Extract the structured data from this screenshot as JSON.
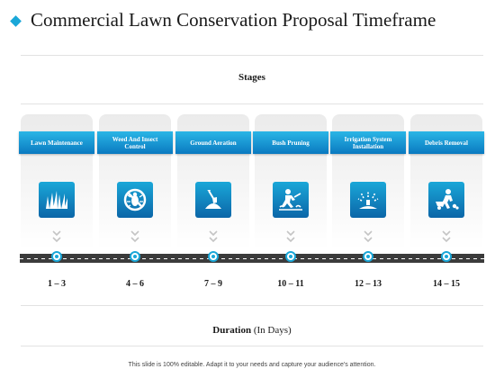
{
  "title": "Commercial Lawn Conservation Proposal Timeframe",
  "stages_label": "Stages",
  "stages": [
    {
      "label": "Lawn Maintenance",
      "icon": "grass-icon",
      "duration": "1 – 3"
    },
    {
      "label": "Weed And Insect Control",
      "icon": "no-bug-icon",
      "duration": "4 – 6"
    },
    {
      "label": "Ground Aeration",
      "icon": "shovel-soil-icon",
      "duration": "7 – 9"
    },
    {
      "label": "Bush Pruning",
      "icon": "gardener-icon",
      "duration": "10 – 11"
    },
    {
      "label": "Irrigation System Installation",
      "icon": "sprinkler-icon",
      "duration": "12 – 13"
    },
    {
      "label": "Debris Removal",
      "icon": "wheelbarrow-icon",
      "duration": "14 – 15"
    }
  ],
  "duration_label": {
    "bold": "Duration",
    "normal": "(In Days)"
  },
  "footer": "This slide is 100% editable. Adapt it to your needs and capture your audience's attention.",
  "colors": {
    "accent": "#1aa7d8",
    "header_dark": "#0a79c0",
    "road": "#3b3b3b"
  }
}
